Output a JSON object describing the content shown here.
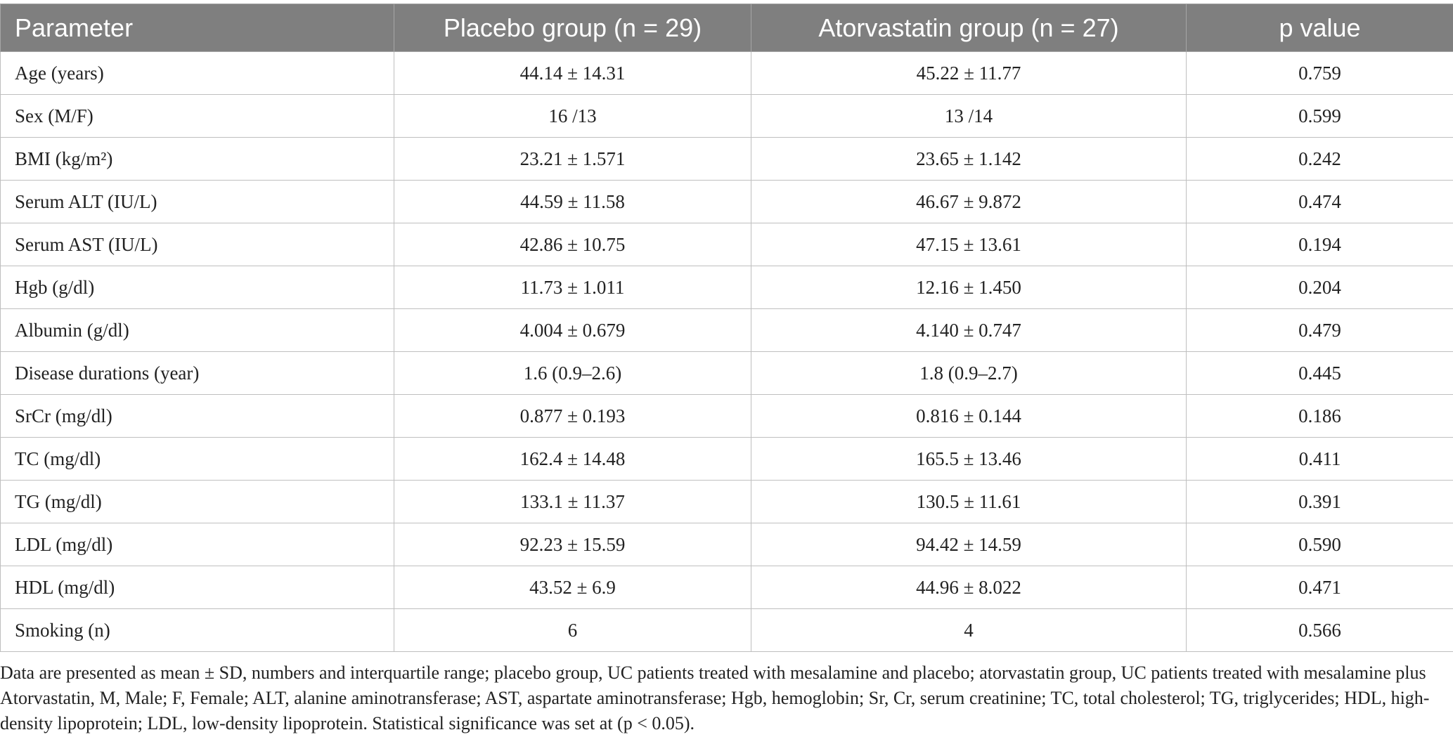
{
  "table": {
    "headers": [
      "Parameter",
      "Placebo group (n = 29)",
      "Atorvastatin group (n = 27)",
      "p value"
    ],
    "rows": [
      [
        "Age (years)",
        "44.14 ± 14.31",
        "45.22 ± 11.77",
        "0.759"
      ],
      [
        "Sex (M/F)",
        "16 /13",
        "13 /14",
        "0.599"
      ],
      [
        "BMI (kg/m²)",
        "23.21 ± 1.571",
        "23.65 ± 1.142",
        "0.242"
      ],
      [
        "Serum ALT (IU/L)",
        "44.59 ± 11.58",
        "46.67 ± 9.872",
        "0.474"
      ],
      [
        "Serum AST (IU/L)",
        "42.86 ± 10.75",
        "47.15 ± 13.61",
        "0.194"
      ],
      [
        "Hgb (g/dl)",
        "11.73 ± 1.011",
        "12.16 ± 1.450",
        "0.204"
      ],
      [
        "Albumin (g/dl)",
        "4.004 ± 0.679",
        "4.140 ± 0.747",
        "0.479"
      ],
      [
        "Disease durations (year)",
        "1.6 (0.9–2.6)",
        "1.8 (0.9–2.7)",
        "0.445"
      ],
      [
        "SrCr (mg/dl)",
        "0.877 ± 0.193",
        "0.816 ± 0.144",
        "0.186"
      ],
      [
        "TC (mg/dl)",
        "162.4 ± 14.48",
        "165.5 ± 13.46",
        "0.411"
      ],
      [
        "TG (mg/dl)",
        "133.1 ± 11.37",
        "130.5 ± 11.61",
        "0.391"
      ],
      [
        "LDL (mg/dl)",
        "92.23 ± 15.59",
        "94.42 ± 14.59",
        "0.590"
      ],
      [
        "HDL (mg/dl)",
        "43.52 ± 6.9",
        "44.96 ± 8.022",
        "0.471"
      ],
      [
        "Smoking (n)",
        "6",
        "4",
        "0.566"
      ]
    ]
  },
  "footnote": "Data are presented as mean ± SD, numbers and interquartile range; placebo group, UC patients treated with mesalamine and placebo; atorvastatin group, UC patients treated with mesalamine plus Atorvastatin, M, Male; F, Female; ALT, alanine aminotransferase; AST, aspartate aminotransferase; Hgb, hemoglobin; Sr, Cr, serum creatinine; TC, total cholesterol; TG, triglycerides; HDL, high-density lipoprotein; LDL, low-density lipoprotein. Statistical significance was set at (p < 0.05)."
}
